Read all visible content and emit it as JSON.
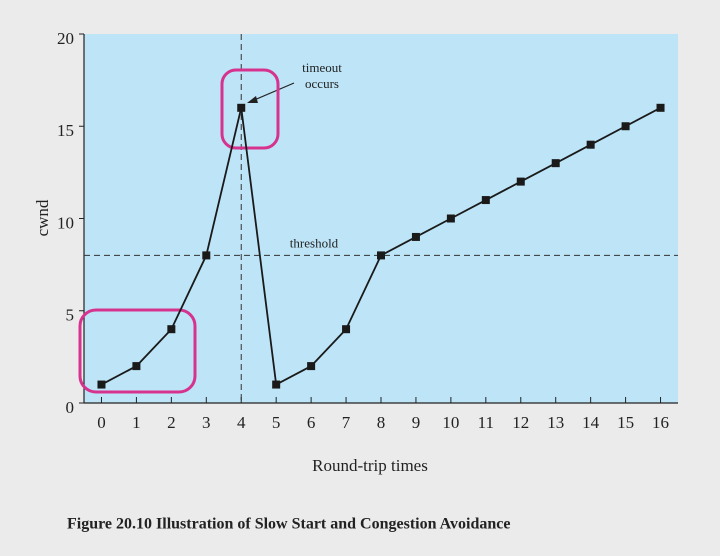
{
  "chart_data": {
    "type": "line",
    "caption": "Figure 20.10  Illustration of Slow Start and Congestion Avoidance",
    "x_label": "Round-trip times",
    "y_label": "cwnd",
    "series": [
      {
        "name": "cwnd",
        "color": "#1a1a1a",
        "x": [
          0,
          1,
          2,
          3,
          4,
          5,
          6,
          7,
          8,
          9,
          10,
          11,
          12,
          13,
          14,
          15,
          16
        ],
        "values": [
          1,
          2,
          4,
          8,
          16,
          1,
          2,
          4,
          8,
          9,
          10,
          11,
          12,
          13,
          14,
          15,
          16
        ]
      }
    ],
    "xlim": [
      -0.5,
      16.5
    ],
    "ylim": [
      0,
      20
    ],
    "xticks": [
      0,
      1,
      2,
      3,
      4,
      5,
      6,
      7,
      8,
      9,
      10,
      11,
      12,
      13,
      14,
      15,
      16
    ],
    "yticks": [
      0,
      5,
      10,
      15,
      20
    ],
    "threshold": {
      "value": 8,
      "label": "threshold"
    },
    "timeout": {
      "x": 4,
      "label": [
        "timeout",
        "occurs"
      ]
    },
    "plot_color": "#bde4f7",
    "highlight_color": "#d6338f"
  }
}
